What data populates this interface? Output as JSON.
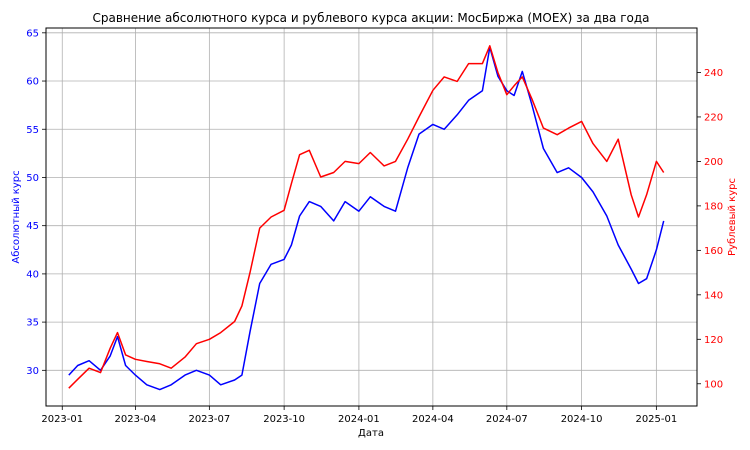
{
  "chart_data": {
    "type": "line",
    "title": "Сравнение абсолютного курса и рублевого курса акции: МосБиржа (MOEX) за два года",
    "xlabel": "Дата",
    "ylabel_left": "Абсолютный курс",
    "ylabel_right": "Рублевый курс",
    "grid": true,
    "x_range": [
      "2022-12-12",
      "2025-02-20"
    ],
    "x_ticks": [
      "2023-01",
      "2023-04",
      "2023-07",
      "2023-10",
      "2024-01",
      "2024-04",
      "2024-07",
      "2024-10",
      "2025-01"
    ],
    "ylim_left": [
      26.3,
      65.5
    ],
    "ylim_right": [
      90,
      260
    ],
    "yticks_left": [
      30,
      35,
      40,
      45,
      50,
      55,
      60,
      65
    ],
    "yticks_right": [
      100,
      120,
      140,
      160,
      180,
      200,
      220,
      240
    ],
    "colors": {
      "absolute": "#0000ff",
      "ruble": "#ff0000"
    },
    "series": [
      {
        "axis": "left",
        "color": "#0000ff",
        "x": [
          "2023-01-09",
          "2023-01-20",
          "2023-02-03",
          "2023-02-17",
          "2023-03-01",
          "2023-03-10",
          "2023-03-20",
          "2023-04-01",
          "2023-04-15",
          "2023-05-01",
          "2023-05-15",
          "2023-06-01",
          "2023-06-15",
          "2023-07-01",
          "2023-07-15",
          "2023-08-01",
          "2023-08-10",
          "2023-08-20",
          "2023-09-01",
          "2023-09-15",
          "2023-10-01",
          "2023-10-10",
          "2023-10-20",
          "2023-11-01",
          "2023-11-15",
          "2023-12-01",
          "2023-12-15",
          "2024-01-01",
          "2024-01-15",
          "2024-02-01",
          "2024-02-15",
          "2024-03-01",
          "2024-03-15",
          "2024-04-01",
          "2024-04-15",
          "2024-05-01",
          "2024-05-15",
          "2024-06-01",
          "2024-06-10",
          "2024-06-20",
          "2024-07-01",
          "2024-07-10",
          "2024-07-20",
          "2024-08-01",
          "2024-08-15",
          "2024-09-01",
          "2024-09-15",
          "2024-10-01",
          "2024-10-15",
          "2024-11-01",
          "2024-11-15",
          "2024-12-01",
          "2024-12-10",
          "2024-12-20",
          "2025-01-01",
          "2025-01-10"
        ],
        "values": [
          29.5,
          30.5,
          31.0,
          30.0,
          31.5,
          33.5,
          30.5,
          29.5,
          28.5,
          28.0,
          28.5,
          29.5,
          30.0,
          29.5,
          28.5,
          29.0,
          29.5,
          34.0,
          39.0,
          41.0,
          41.5,
          43.0,
          46.0,
          47.5,
          47.0,
          45.5,
          47.5,
          46.5,
          48.0,
          47.0,
          46.5,
          51.0,
          54.5,
          55.5,
          55.0,
          56.5,
          58.0,
          59.0,
          63.5,
          60.5,
          59.0,
          58.5,
          61.0,
          57.5,
          53.0,
          50.5,
          51.0,
          50.0,
          48.5,
          46.0,
          43.0,
          40.5,
          39.0,
          39.5,
          42.5,
          45.5
        ]
      },
      {
        "axis": "right",
        "color": "#ff0000",
        "x": [
          "2023-01-09",
          "2023-01-20",
          "2023-02-03",
          "2023-02-17",
          "2023-03-01",
          "2023-03-10",
          "2023-03-20",
          "2023-04-01",
          "2023-04-15",
          "2023-05-01",
          "2023-05-15",
          "2023-06-01",
          "2023-06-15",
          "2023-07-01",
          "2023-07-15",
          "2023-08-01",
          "2023-08-10",
          "2023-08-20",
          "2023-09-01",
          "2023-09-15",
          "2023-10-01",
          "2023-10-10",
          "2023-10-20",
          "2023-11-01",
          "2023-11-15",
          "2023-12-01",
          "2023-12-15",
          "2024-01-01",
          "2024-01-15",
          "2024-02-01",
          "2024-02-15",
          "2024-03-01",
          "2024-03-15",
          "2024-04-01",
          "2024-04-15",
          "2024-05-01",
          "2024-05-15",
          "2024-06-01",
          "2024-06-10",
          "2024-06-20",
          "2024-07-01",
          "2024-07-10",
          "2024-07-20",
          "2024-08-01",
          "2024-08-15",
          "2024-09-01",
          "2024-09-15",
          "2024-10-01",
          "2024-10-15",
          "2024-11-01",
          "2024-11-15",
          "2024-12-01",
          "2024-12-10",
          "2024-12-20",
          "2025-01-01",
          "2025-01-10"
        ],
        "values": [
          98,
          102,
          107,
          105,
          116,
          123,
          113,
          111,
          110,
          109,
          107,
          112,
          118,
          120,
          123,
          128,
          135,
          150,
          170,
          175,
          178,
          190,
          203,
          205,
          193,
          195,
          200,
          199,
          204,
          198,
          200,
          210,
          220,
          232,
          238,
          236,
          244,
          244,
          252,
          240,
          230,
          234,
          238,
          228,
          215,
          212,
          215,
          218,
          208,
          200,
          210,
          185,
          175,
          185,
          200,
          195
        ]
      }
    ]
  }
}
